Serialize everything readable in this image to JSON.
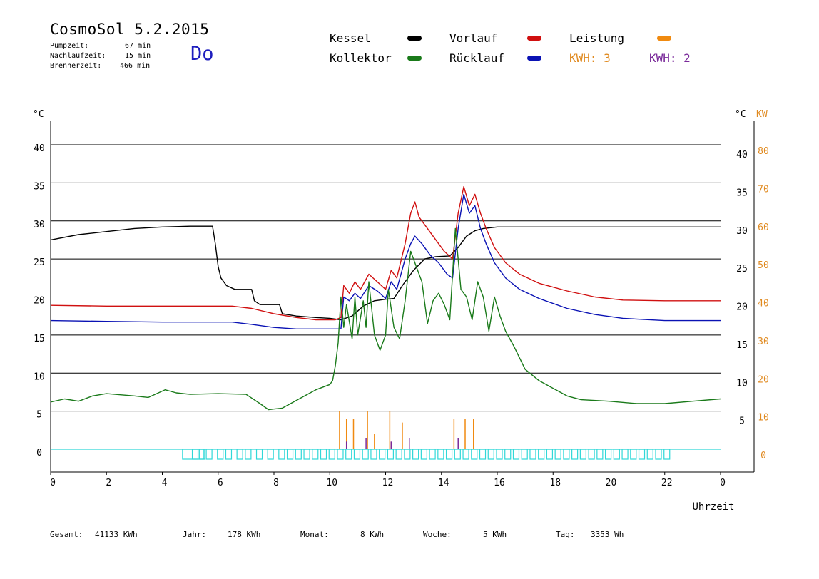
{
  "header": {
    "title": "CosmoSol 5.2.2015",
    "day": "Do",
    "pump_label": "Pumpzeit:",
    "pump_value": "67 min",
    "nach_label": "Nachlaufzeit:",
    "nach_value": "15 min",
    "brenner_label": "Brennerzeit:",
    "brenner_value": "466 min"
  },
  "legend": {
    "kessel": "Kessel",
    "kollektor": "Kollektor",
    "vorlauf": "Vorlauf",
    "ruecklauf": "Rücklauf",
    "leistung": "Leistung",
    "kwh1": "KWH: 3",
    "kwh2": "KWH: 2"
  },
  "colors": {
    "kessel": "#000000",
    "kollektor": "#1a7a1a",
    "vorlauf": "#d01010",
    "ruecklauf": "#0a12b4",
    "leistung": "#f08a10",
    "kwh2": "#7a2a9a",
    "pump": "#30d8d8",
    "kw_axis": "#e08a20"
  },
  "footer": {
    "gesamt_label": "Gesamt:",
    "gesamt_value": "41133 KWh",
    "jahr_label": "Jahr:",
    "jahr_value": "178 KWh",
    "monat_label": "Monat:",
    "monat_value": "8 KWh",
    "woche_label": "Woche:",
    "woche_value": "5 KWh",
    "tag_label": "Tag:",
    "tag_value": "3353 Wh"
  },
  "chart_data": {
    "type": "line",
    "xlabel": "Uhrzeit",
    "ylabel_left": "°C",
    "ylabel_right": "°C",
    "ylabel_right2": "KW",
    "x_ticks": [
      "0",
      "2",
      "4",
      "6",
      "8",
      "10",
      "12",
      "14",
      "16",
      "18",
      "20",
      "22",
      "0"
    ],
    "y_ticks": [
      "0",
      "5",
      "10",
      "15",
      "20",
      "25",
      "30",
      "35",
      "40"
    ],
    "y2_ticks": [
      "0",
      "10",
      "20",
      "30",
      "40",
      "50",
      "60",
      "70",
      "80"
    ],
    "xlim": [
      0,
      24
    ],
    "ylim": [
      0,
      40
    ],
    "y2lim": [
      0,
      80
    ],
    "grid": true,
    "series": [
      {
        "name": "Kessel",
        "color": "#000000",
        "points": [
          [
            0,
            27.5
          ],
          [
            1,
            28.2
          ],
          [
            2,
            28.6
          ],
          [
            3,
            29.0
          ],
          [
            4,
            29.2
          ],
          [
            5,
            29.3
          ],
          [
            5.8,
            29.3
          ],
          [
            5.9,
            27
          ],
          [
            6,
            24
          ],
          [
            6.1,
            22.5
          ],
          [
            6.3,
            21.5
          ],
          [
            6.6,
            21.0
          ],
          [
            7.2,
            21.0
          ],
          [
            7.3,
            19.5
          ],
          [
            7.5,
            19.0
          ],
          [
            8.2,
            19.0
          ],
          [
            8.3,
            17.8
          ],
          [
            8.8,
            17.5
          ],
          [
            9.5,
            17.3
          ],
          [
            10.0,
            17.2
          ],
          [
            10.4,
            17.0
          ],
          [
            10.8,
            17.5
          ],
          [
            11.2,
            18.8
          ],
          [
            11.6,
            19.5
          ],
          [
            12.0,
            19.7
          ],
          [
            12.3,
            19.8
          ],
          [
            12.6,
            21.5
          ],
          [
            13.0,
            23.5
          ],
          [
            13.4,
            25.0
          ],
          [
            13.8,
            25.3
          ],
          [
            14.3,
            25.4
          ],
          [
            14.6,
            26.5
          ],
          [
            14.9,
            28.0
          ],
          [
            15.2,
            28.7
          ],
          [
            15.5,
            29.0
          ],
          [
            16,
            29.2
          ],
          [
            18,
            29.2
          ],
          [
            20,
            29.2
          ],
          [
            22,
            29.2
          ],
          [
            24,
            29.2
          ]
        ]
      },
      {
        "name": "Vorlauf",
        "color": "#d01010",
        "points": [
          [
            0,
            18.9
          ],
          [
            2,
            18.8
          ],
          [
            4,
            18.8
          ],
          [
            6.5,
            18.8
          ],
          [
            7.2,
            18.5
          ],
          [
            8,
            17.8
          ],
          [
            8.8,
            17.3
          ],
          [
            9.5,
            17.0
          ],
          [
            10.2,
            17.0
          ],
          [
            10.4,
            17.3
          ],
          [
            10.5,
            21.5
          ],
          [
            10.7,
            20.5
          ],
          [
            10.9,
            22.0
          ],
          [
            11.1,
            21.0
          ],
          [
            11.4,
            23.0
          ],
          [
            11.7,
            22.0
          ],
          [
            12.0,
            21.0
          ],
          [
            12.2,
            23.5
          ],
          [
            12.4,
            22.5
          ],
          [
            12.7,
            27.0
          ],
          [
            12.9,
            31.0
          ],
          [
            13.05,
            32.5
          ],
          [
            13.2,
            30.5
          ],
          [
            13.5,
            29.0
          ],
          [
            13.8,
            27.5
          ],
          [
            14.1,
            26.0
          ],
          [
            14.4,
            25.0
          ],
          [
            14.6,
            31.0
          ],
          [
            14.8,
            34.5
          ],
          [
            15.0,
            32.0
          ],
          [
            15.2,
            33.5
          ],
          [
            15.4,
            31.0
          ],
          [
            15.6,
            29.0
          ],
          [
            15.9,
            26.5
          ],
          [
            16.3,
            24.5
          ],
          [
            16.8,
            23.0
          ],
          [
            17.5,
            21.8
          ],
          [
            18.5,
            20.8
          ],
          [
            19.5,
            20.0
          ],
          [
            20.5,
            19.6
          ],
          [
            22,
            19.5
          ],
          [
            24,
            19.5
          ]
        ]
      },
      {
        "name": "Rücklauf",
        "color": "#0a12b4",
        "points": [
          [
            0,
            16.9
          ],
          [
            2,
            16.8
          ],
          [
            4,
            16.7
          ],
          [
            6.5,
            16.7
          ],
          [
            7.2,
            16.4
          ],
          [
            8,
            16.0
          ],
          [
            8.8,
            15.8
          ],
          [
            9.5,
            15.8
          ],
          [
            10.2,
            15.8
          ],
          [
            10.4,
            15.8
          ],
          [
            10.5,
            20.0
          ],
          [
            10.7,
            19.5
          ],
          [
            10.9,
            20.5
          ],
          [
            11.1,
            19.8
          ],
          [
            11.4,
            21.5
          ],
          [
            11.7,
            20.8
          ],
          [
            12.0,
            19.8
          ],
          [
            12.2,
            22.0
          ],
          [
            12.4,
            21.0
          ],
          [
            12.7,
            25.0
          ],
          [
            12.9,
            27.0
          ],
          [
            13.05,
            28.0
          ],
          [
            13.3,
            27.0
          ],
          [
            13.6,
            25.5
          ],
          [
            13.9,
            24.5
          ],
          [
            14.2,
            23.0
          ],
          [
            14.4,
            22.5
          ],
          [
            14.6,
            29.0
          ],
          [
            14.8,
            33.5
          ],
          [
            15.0,
            31.0
          ],
          [
            15.2,
            32.0
          ],
          [
            15.4,
            29.0
          ],
          [
            15.6,
            27.0
          ],
          [
            15.9,
            24.5
          ],
          [
            16.3,
            22.5
          ],
          [
            16.8,
            21.0
          ],
          [
            17.5,
            19.8
          ],
          [
            18.5,
            18.5
          ],
          [
            19.5,
            17.7
          ],
          [
            20.5,
            17.2
          ],
          [
            22,
            16.9
          ],
          [
            24,
            16.9
          ]
        ]
      },
      {
        "name": "Kollektor",
        "color": "#1a7a1a",
        "points": [
          [
            0,
            6.2
          ],
          [
            0.5,
            6.6
          ],
          [
            1,
            6.3
          ],
          [
            1.5,
            7.0
          ],
          [
            2,
            7.3
          ],
          [
            3,
            7.0
          ],
          [
            3.5,
            6.8
          ],
          [
            4.1,
            7.8
          ],
          [
            4.5,
            7.4
          ],
          [
            5,
            7.2
          ],
          [
            6,
            7.3
          ],
          [
            7,
            7.2
          ],
          [
            7.5,
            6.0
          ],
          [
            7.8,
            5.2
          ],
          [
            8.3,
            5.4
          ],
          [
            9,
            6.8
          ],
          [
            9.5,
            7.8
          ],
          [
            10,
            8.5
          ],
          [
            10.1,
            9.0
          ],
          [
            10.2,
            11.0
          ],
          [
            10.3,
            14.0
          ],
          [
            10.4,
            20.0
          ],
          [
            10.5,
            16.0
          ],
          [
            10.6,
            19.0
          ],
          [
            10.8,
            14.5
          ],
          [
            10.9,
            20.0
          ],
          [
            11.0,
            15.0
          ],
          [
            11.2,
            19.5
          ],
          [
            11.3,
            16.0
          ],
          [
            11.4,
            22.0
          ],
          [
            11.6,
            15.0
          ],
          [
            11.8,
            13.0
          ],
          [
            12.0,
            15.0
          ],
          [
            12.1,
            21.0
          ],
          [
            12.3,
            16.0
          ],
          [
            12.5,
            14.5
          ],
          [
            12.7,
            19.5
          ],
          [
            12.9,
            26.0
          ],
          [
            13.1,
            24.0
          ],
          [
            13.3,
            22.0
          ],
          [
            13.5,
            16.5
          ],
          [
            13.7,
            19.5
          ],
          [
            13.9,
            20.5
          ],
          [
            14.1,
            19.0
          ],
          [
            14.3,
            17.0
          ],
          [
            14.5,
            29.0
          ],
          [
            14.7,
            21.0
          ],
          [
            14.9,
            20.0
          ],
          [
            15.1,
            17.0
          ],
          [
            15.3,
            22.0
          ],
          [
            15.5,
            20.0
          ],
          [
            15.7,
            15.5
          ],
          [
            15.9,
            20.0
          ],
          [
            16.1,
            17.5
          ],
          [
            16.3,
            15.5
          ],
          [
            16.6,
            13.5
          ],
          [
            17,
            10.5
          ],
          [
            17.5,
            9.0
          ],
          [
            18,
            8.0
          ],
          [
            18.5,
            7.0
          ],
          [
            19,
            6.5
          ],
          [
            20,
            6.3
          ],
          [
            21,
            6.0
          ],
          [
            22,
            6.0
          ],
          [
            23,
            6.3
          ],
          [
            24,
            6.6
          ]
        ]
      }
    ],
    "leistung_spikes": [
      [
        10.35,
        10
      ],
      [
        10.6,
        8
      ],
      [
        10.85,
        8
      ],
      [
        11.35,
        10
      ],
      [
        11.6,
        4
      ],
      [
        12.15,
        10
      ],
      [
        12.6,
        7
      ],
      [
        14.45,
        8
      ],
      [
        14.85,
        8
      ],
      [
        15.15,
        8
      ]
    ],
    "kwh2_spikes": [
      [
        10.6,
        2
      ],
      [
        11.3,
        3
      ],
      [
        12.2,
        2
      ],
      [
        12.85,
        3
      ],
      [
        14.6,
        3
      ]
    ],
    "pump_times": [
      4.75,
      5.1,
      5.35,
      5.6,
      6.0,
      6.3,
      6.7,
      7.0,
      7.4,
      7.8,
      8.2,
      8.5,
      8.8,
      9.1,
      9.4,
      9.7,
      10.0,
      10.3,
      10.6,
      10.9,
      11.2,
      11.5,
      11.8,
      12.1,
      12.4,
      12.7,
      13.0,
      13.3,
      13.6,
      13.9,
      14.2,
      14.5,
      14.8,
      15.1,
      15.4,
      15.7,
      16.0,
      16.3,
      16.6,
      16.9,
      17.2,
      17.5,
      17.8,
      18.1,
      18.4,
      18.7,
      19.0,
      19.3,
      19.6,
      19.9,
      20.2,
      20.5,
      20.8,
      21.1,
      21.4,
      21.7,
      22.0
    ]
  }
}
